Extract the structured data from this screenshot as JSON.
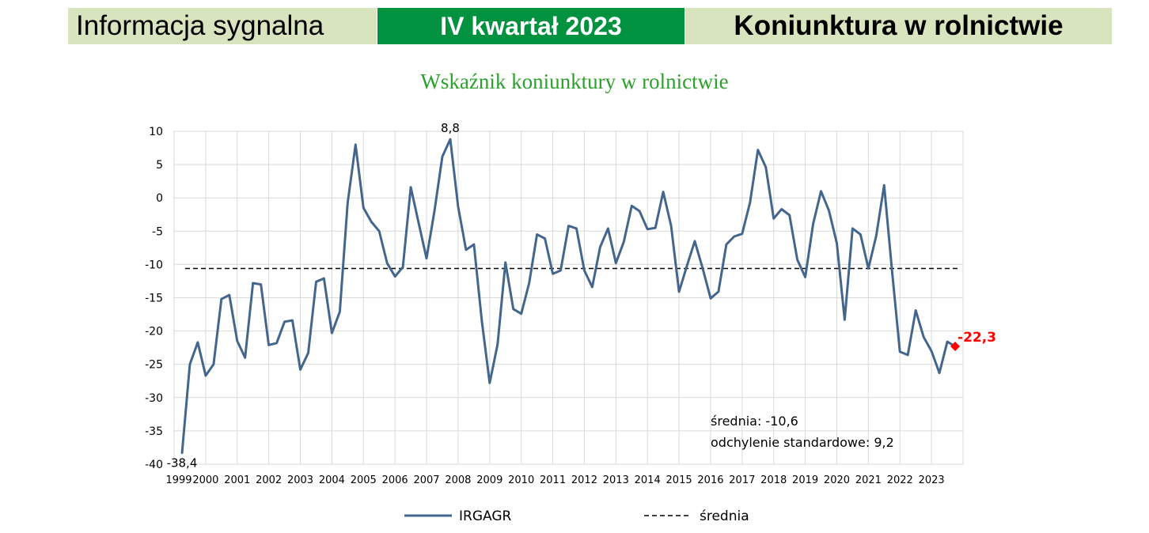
{
  "header": {
    "left": "Informacja sygnalna",
    "middle": "IV kwartał 2023",
    "right": "Koniunktura w rolnictwie"
  },
  "colors": {
    "series": "#44668c",
    "last_point": "#ff0000",
    "banner_light": "#d7e4bd",
    "banner_green": "#00923f",
    "title": "#2ca02c"
  },
  "chart_data": {
    "type": "line",
    "title": "Wskaźnik koniunktury w rolnictwie",
    "xlabel": "",
    "ylabel": "",
    "ylim": [
      -40,
      10
    ],
    "yticks": [
      10,
      5,
      0,
      -5,
      -10,
      -15,
      -20,
      -25,
      -30,
      -35,
      -40
    ],
    "xlim": [
      1999,
      2024
    ],
    "xticks": [
      1999,
      2000,
      2001,
      2002,
      2003,
      2004,
      2005,
      2006,
      2007,
      2008,
      2009,
      2010,
      2011,
      2012,
      2013,
      2014,
      2015,
      2016,
      2017,
      2018,
      2019,
      2020,
      2021,
      2022,
      2023
    ],
    "grid": true,
    "legend_placement": "bottom",
    "series": [
      {
        "name": "IRGAGR",
        "x": [
          1999.25,
          1999.5,
          1999.75,
          2000.0,
          2000.25,
          2000.5,
          2000.75,
          2001.0,
          2001.25,
          2001.5,
          2001.75,
          2002.0,
          2002.25,
          2002.5,
          2002.75,
          2003.0,
          2003.25,
          2003.5,
          2003.75,
          2004.0,
          2004.25,
          2004.5,
          2004.75,
          2005.0,
          2005.25,
          2005.5,
          2005.75,
          2006.0,
          2006.25,
          2006.5,
          2006.75,
          2007.0,
          2007.25,
          2007.5,
          2007.75,
          2008.0,
          2008.25,
          2008.5,
          2008.75,
          2009.0,
          2009.25,
          2009.5,
          2009.75,
          2010.0,
          2010.25,
          2010.5,
          2010.75,
          2011.0,
          2011.25,
          2011.5,
          2011.75,
          2012.0,
          2012.25,
          2012.5,
          2012.75,
          2013.0,
          2013.25,
          2013.5,
          2013.75,
          2014.0,
          2014.25,
          2014.5,
          2014.75,
          2015.0,
          2015.25,
          2015.5,
          2015.75,
          2016.0,
          2016.25,
          2016.5,
          2016.75,
          2017.0,
          2017.25,
          2017.5,
          2017.75,
          2018.0,
          2018.25,
          2018.5,
          2018.75,
          2019.0,
          2019.25,
          2019.5,
          2019.75,
          2020.0,
          2020.25,
          2020.5,
          2020.75,
          2021.0,
          2021.25,
          2021.5,
          2021.75,
          2022.0,
          2022.25,
          2022.5,
          2022.75,
          2023.0,
          2023.25,
          2023.5,
          2023.75
        ],
        "values": [
          -38.4,
          -25,
          -21.7,
          -26.7,
          -25,
          -15.2,
          -14.6,
          -21.5,
          -24,
          -12.8,
          -13,
          -22.1,
          -21.8,
          -18.6,
          -18.4,
          -25.8,
          -23.3,
          -12.6,
          -12.1,
          -20.3,
          -17.1,
          -0.8,
          8,
          -1.5,
          -3.6,
          -5,
          -9.8,
          -11.8,
          -10.4,
          1.6,
          -3.8,
          -9.1,
          -2,
          6.2,
          8.8,
          -1.3,
          -7.8,
          -7,
          -18.4,
          -27.8,
          -22,
          -9.7,
          -16.7,
          -17.4,
          -12.8,
          -5.5,
          -6.1,
          -11.4,
          -10.9,
          -4.2,
          -4.6,
          -10.9,
          -13.4,
          -7.4,
          -4.6,
          -9.8,
          -6.6,
          -1.2,
          -2,
          -4.7,
          -4.5,
          0.9,
          -4.2,
          -14.1,
          -10.2,
          -6.5,
          -10.6,
          -15.1,
          -14.1,
          -7,
          -5.8,
          -5.4,
          -0.7,
          7.2,
          4.6,
          -3.1,
          -1.7,
          -2.6,
          -9.3,
          -11.9,
          -3.9,
          1,
          -1.9,
          -6.8,
          -18.3,
          -4.6,
          -5.5,
          -10.6,
          -5.7,
          1.9,
          -11,
          -23.1,
          -23.6,
          -16.9,
          -20.9,
          -23,
          -26.3,
          -21.6,
          -22.3
        ]
      },
      {
        "name": "średnia",
        "x": [
          1999,
          2024
        ],
        "values": [
          -10.6,
          -10.6
        ]
      }
    ],
    "annotations": {
      "max_label": "8,8",
      "min_label": "-38,4",
      "last_label": "-22,3",
      "mean_text": "średnia: -10,6",
      "std_text": "odchylenie standardowe: 9,2"
    }
  }
}
